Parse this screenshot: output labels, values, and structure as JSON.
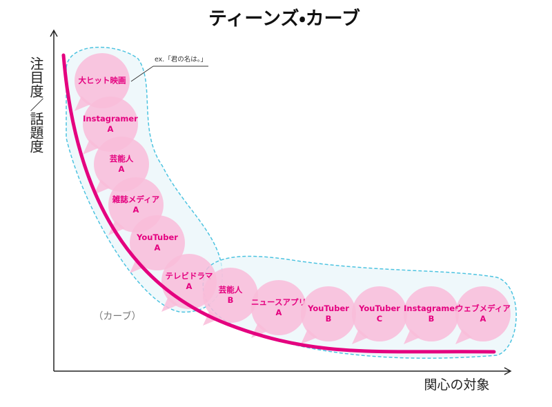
{
  "title": "ティーンズ・カーブ",
  "y_axis_label": "注目度／話題度",
  "x_axis_label": "関心の対象",
  "annotation": "ex.「君の名は。」",
  "curve_label": "（カーブ）",
  "bubbles": [
    {
      "lines": [
        "大ヒット映画"
      ]
    },
    {
      "lines": [
        "Instagramer",
        "A"
      ]
    },
    {
      "lines": [
        "芸能人",
        "A"
      ]
    },
    {
      "lines": [
        "雑誌メディア",
        "A"
      ]
    },
    {
      "lines": [
        "YouTuber",
        "A"
      ]
    },
    {
      "lines": [
        "テレビドラマ",
        "A"
      ]
    },
    {
      "lines": [
        "芸能人",
        "B"
      ]
    },
    {
      "lines": [
        "ニュースアプリ",
        "A"
      ]
    },
    {
      "lines": [
        "YouTuber",
        "B"
      ]
    },
    {
      "lines": [
        "YouTuber",
        "C"
      ]
    },
    {
      "lines": [
        "Instagramer",
        "B"
      ]
    },
    {
      "lines": [
        "ウェブメディア",
        "A"
      ]
    }
  ]
}
